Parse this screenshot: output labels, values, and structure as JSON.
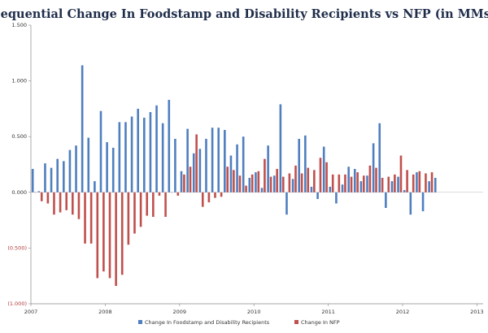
{
  "chart_data": {
    "type": "bar",
    "title": "Sequential Change In Foodstamp and Disability Recipients vs NFP (in MMs)",
    "ylim": [
      -1.0,
      1.5
    ],
    "yticks": [
      {
        "value": 1.5,
        "label": "1.500"
      },
      {
        "value": 1.0,
        "label": "1.000"
      },
      {
        "value": 0.5,
        "label": "0.500"
      },
      {
        "value": 0.0,
        "label": "0.000"
      },
      {
        "value": -0.5,
        "label": "(0.500)"
      },
      {
        "value": -1.0,
        "label": "(1.000)"
      }
    ],
    "xticks": [
      {
        "index": 0,
        "label": "2007"
      },
      {
        "index": 12,
        "label": "2008"
      },
      {
        "index": 24,
        "label": "2009"
      },
      {
        "index": 36,
        "label": "2010"
      },
      {
        "index": 48,
        "label": "2011"
      },
      {
        "index": 60,
        "label": "2012"
      },
      {
        "index": 72,
        "label": "2013"
      }
    ],
    "grid": false,
    "legend_position": "bottom",
    "series": [
      {
        "name": "Change In Foodstamp and Disability Recipients",
        "color": "#4f7fbf",
        "values": [
          0.21,
          0.01,
          0.26,
          0.22,
          0.3,
          0.28,
          0.38,
          0.42,
          1.14,
          0.49,
          0.1,
          0.73,
          0.45,
          0.4,
          0.63,
          0.63,
          0.68,
          0.75,
          0.67,
          0.72,
          0.78,
          0.62,
          0.83,
          0.48,
          0.19,
          0.57,
          0.35,
          0.39,
          0.48,
          0.58,
          0.58,
          0.56,
          0.33,
          0.43,
          0.5,
          0.13,
          0.18,
          0.04,
          0.42,
          0.15,
          0.79,
          -0.2,
          0.12,
          0.48,
          0.51,
          0.05,
          -0.06,
          0.41,
          0.05,
          -0.1,
          0.07,
          0.23,
          0.21,
          0.1,
          0.15,
          0.44,
          0.62,
          -0.14,
          0.1,
          0.14,
          0.02,
          -0.2,
          0.18,
          -0.17,
          0.1,
          0.13
        ]
      },
      {
        "name": "Change In NFP",
        "color": "#c0504d",
        "values": [
          0.0,
          -0.08,
          -0.1,
          -0.2,
          -0.18,
          -0.16,
          -0.2,
          -0.24,
          -0.46,
          -0.46,
          -0.77,
          -0.71,
          -0.77,
          -0.84,
          -0.74,
          -0.47,
          -0.37,
          -0.31,
          -0.21,
          -0.22,
          -0.03,
          -0.22,
          0.0,
          -0.03,
          0.16,
          0.23,
          0.52,
          -0.13,
          -0.09,
          -0.05,
          -0.04,
          0.23,
          0.2,
          0.15,
          0.06,
          0.16,
          0.19,
          0.3,
          0.14,
          0.21,
          0.14,
          0.17,
          0.24,
          0.17,
          0.22,
          0.2,
          0.31,
          0.27,
          0.16,
          0.16,
          0.16,
          0.14,
          0.18,
          0.15,
          0.24,
          0.22,
          0.13,
          0.14,
          0.16,
          0.33,
          0.2,
          0.16,
          0.19,
          0.17,
          0.18
        ]
      }
    ]
  }
}
